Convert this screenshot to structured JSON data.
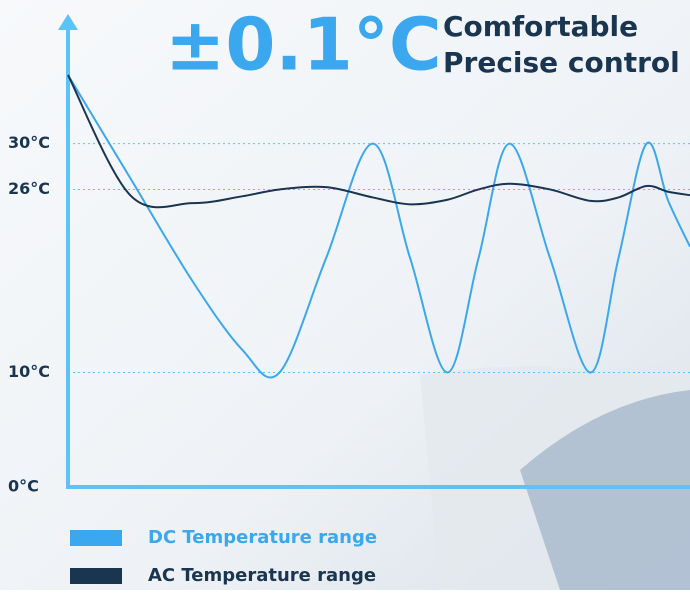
{
  "chart_data": {
    "type": "line",
    "title": "±0.1°C",
    "subtitle": [
      "Comfortable",
      "Precise control"
    ],
    "x": [
      0,
      10,
      20,
      28,
      34,
      41.5,
      49,
      55,
      61,
      66,
      71,
      77.5,
      84,
      88.5,
      93,
      96.5,
      100
    ],
    "xlim": [
      0,
      100
    ],
    "ylim": [
      0,
      36
    ],
    "yticks": [
      {
        "value": 0,
        "label": "0°C"
      },
      {
        "value": 10,
        "label": "10°C"
      },
      {
        "value": 26,
        "label": "26°C"
      },
      {
        "value": 30,
        "label": "30°C"
      }
    ],
    "grid": true,
    "legend": "bottom",
    "series": [
      {
        "name": "DC Temperature range",
        "color": "#3aa7ee",
        "values": [
          36,
          27,
          18,
          12,
          10,
          20,
          30,
          20,
          10,
          20,
          30,
          20,
          10,
          20,
          30,
          25,
          21
        ]
      },
      {
        "name": "AC Temperature range",
        "color": "#1a3550",
        "values": [
          36,
          25.5,
          24.8,
          25.4,
          26,
          26.2,
          25.3,
          24.7,
          25.1,
          26,
          26.5,
          26,
          25,
          25.3,
          26.3,
          25.8,
          25.5
        ]
      }
    ]
  }
}
